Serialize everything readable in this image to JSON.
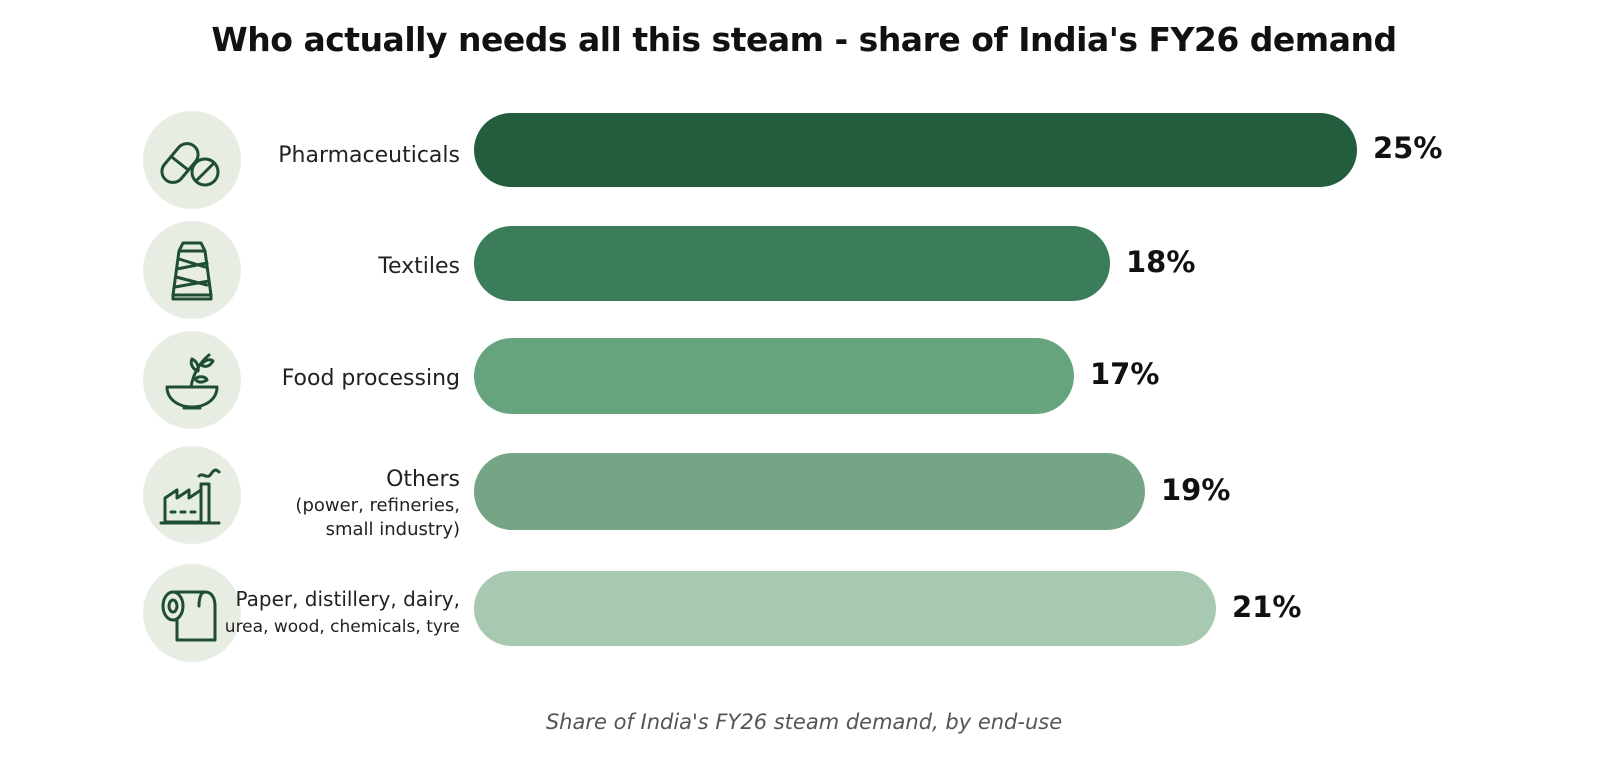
{
  "chart_data": {
    "type": "bar",
    "orientation": "horizontal",
    "title": "Who actually needs all this steam - share of India's FY26 demand",
    "caption": "Share of India's FY26 steam demand, by end-use",
    "categories": [
      {
        "label": "Pharmaceuticals",
        "sublabel": "",
        "icon": "pill-capsule-icon",
        "value": 25,
        "display": "25%",
        "color": "#235d3e"
      },
      {
        "label": "Textiles",
        "sublabel": "",
        "icon": "thread-spool-icon",
        "value": 18,
        "display": "18%",
        "color": "#3b7c5a"
      },
      {
        "label": "Food processing",
        "sublabel": "",
        "icon": "bowl-sprout-icon",
        "value": 17,
        "display": "17%",
        "color": "#66a47d"
      },
      {
        "label": "Others",
        "sublabel": "(power, refineries,\nsmall industry)",
        "icon": "factory-icon",
        "value": 19,
        "display": "19%",
        "color": "#75a585"
      },
      {
        "label": "Paper, distillery, dairy,",
        "sublabel": "urea, wood, chemicals, tyre",
        "icon": "paper-roll-icon",
        "value": 21,
        "display": "21%",
        "color": "#a7c8b1"
      }
    ],
    "unit": "%",
    "xlim": [
      0,
      25
    ],
    "grid": false,
    "legend": "none"
  }
}
